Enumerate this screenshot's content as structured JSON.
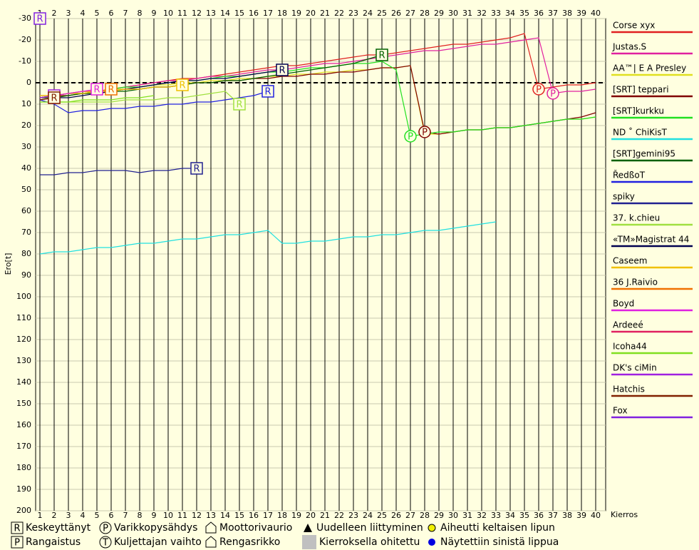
{
  "chart_data": {
    "type": "line",
    "y_label": "Ero[t]",
    "x_label": "Kierros",
    "xlim": [
      0.7,
      40.7
    ],
    "ylim": [
      -30,
      200
    ],
    "y_inverted": true,
    "grid": true,
    "zero_line": true,
    "x": [
      1,
      2,
      3,
      4,
      5,
      6,
      7,
      8,
      9,
      10,
      11,
      12,
      13,
      14,
      15,
      16,
      17,
      18,
      19,
      20,
      21,
      22,
      23,
      24,
      25,
      26,
      27,
      28,
      29,
      30,
      31,
      32,
      33,
      34,
      35,
      36,
      37,
      38,
      39,
      40
    ],
    "xticks": [
      1,
      2,
      3,
      4,
      5,
      6,
      7,
      8,
      9,
      10,
      11,
      12,
      13,
      14,
      15,
      16,
      17,
      18,
      19,
      20,
      21,
      22,
      23,
      24,
      25,
      26,
      27,
      28,
      29,
      30,
      31,
      32,
      33,
      34,
      35,
      36,
      37,
      38,
      39,
      40
    ],
    "yticks": [
      -30,
      -20,
      -10,
      0,
      10,
      20,
      30,
      40,
      50,
      60,
      70,
      80,
      90,
      100,
      110,
      120,
      130,
      140,
      150,
      160,
      170,
      180,
      190,
      200
    ],
    "series": [
      {
        "name": "Corse xyx",
        "color": "#e02020",
        "values": [
          7,
          6,
          5,
          5,
          4,
          3,
          2,
          1,
          0,
          -1,
          -2,
          -2,
          -3,
          -4,
          -5,
          -6,
          -7,
          -8,
          -8,
          -9,
          -10,
          -11,
          -12,
          -13,
          -13,
          -14,
          -15,
          -16,
          -17,
          -18,
          -18,
          -19,
          -20,
          -21,
          -23,
          3,
          2,
          1,
          1,
          0
        ],
        "pits": [
          {
            "lap": 36,
            "label": "P"
          }
        ]
      },
      {
        "name": "Justas.S",
        "color": "#e020a0",
        "values": [
          6,
          6,
          5,
          4,
          4,
          3,
          2,
          1,
          0,
          -1,
          -1,
          -2,
          -3,
          -3,
          -4,
          -5,
          -6,
          -6,
          -7,
          -8,
          -9,
          -9,
          -10,
          -11,
          -12,
          -13,
          -14,
          -15,
          -15,
          -16,
          -17,
          -18,
          -18,
          -19,
          -20,
          -21,
          5,
          4,
          4,
          3
        ],
        "pits": [
          {
            "lap": 37,
            "label": "P"
          }
        ]
      },
      {
        "name": "AA™| E A Presley",
        "color": "#e0e020",
        "values": [
          6,
          6,
          5,
          4,
          4,
          3,
          3,
          2,
          1,
          1,
          0,
          0,
          -1,
          -1,
          -2,
          -2,
          -3,
          -3,
          -4,
          -4,
          -5,
          -5,
          -6,
          -6,
          -7,
          -7,
          -8,
          24,
          24,
          23,
          22,
          22,
          21,
          21,
          20,
          19,
          18,
          17,
          17,
          16
        ]
      },
      {
        "name": "[SRT] teppari",
        "color": "#800000",
        "values": [
          7,
          6,
          6,
          5,
          5,
          4,
          3,
          3,
          2,
          2,
          1,
          0,
          0,
          -1,
          -1,
          -2,
          -2,
          -3,
          -3,
          -4,
          -4,
          -5,
          -5,
          -6,
          -7,
          -7,
          -8,
          23,
          24,
          23,
          22,
          22,
          21,
          21,
          20,
          19,
          18,
          17,
          16,
          14
        ],
        "pits": [
          {
            "lap": 28,
            "label": "P"
          }
        ]
      },
      {
        "name": "[SRT]kurkku",
        "color": "#20e020",
        "values": [
          7,
          6,
          5,
          5,
          4,
          3,
          2,
          2,
          1,
          0,
          -1,
          -1,
          -2,
          -3,
          -3,
          -4,
          -5,
          -5,
          -6,
          -7,
          -7,
          -8,
          -9,
          -9,
          -10,
          -6,
          25,
          24,
          23,
          23,
          22,
          22,
          21,
          21,
          20,
          19,
          18,
          17,
          17,
          16
        ],
        "pits": [
          {
            "lap": 27,
            "label": "P"
          }
        ]
      },
      {
        "name": "ND ˚ ChiKisT",
        "color": "#20e0e0",
        "values": [
          80,
          79,
          79,
          78,
          77,
          77,
          76,
          75,
          75,
          74,
          73,
          73,
          72,
          71,
          71,
          70,
          69,
          75,
          75,
          74,
          74,
          73,
          72,
          72,
          71,
          71,
          70,
          69,
          69,
          68,
          67,
          66,
          65,
          null,
          null,
          null,
          null,
          null,
          null,
          null
        ]
      },
      {
        "name": "[SRT]gemini95",
        "color": "#006000",
        "values": [
          7,
          7,
          6,
          5,
          5,
          4,
          4,
          3,
          2,
          2,
          1,
          0,
          0,
          -1,
          -1,
          -2,
          -3,
          -4,
          -5,
          -6,
          -7,
          -8,
          -9,
          -11,
          -13,
          null,
          null,
          null,
          null,
          null,
          null,
          null,
          null,
          null,
          null,
          null,
          null,
          null,
          null,
          null
        ],
        "end": "R"
      },
      {
        "name": "ŘedßoT",
        "color": "#2020e0",
        "values": [
          8,
          10,
          14,
          13,
          13,
          12,
          12,
          11,
          11,
          10,
          10,
          9,
          9,
          8,
          7,
          6,
          4,
          null,
          null,
          null,
          null,
          null,
          null,
          null,
          null,
          null,
          null,
          null,
          null,
          null,
          null,
          null,
          null,
          null,
          null,
          null,
          null,
          null,
          null,
          null
        ],
        "end": "R"
      },
      {
        "name": "spiky",
        "color": "#202090",
        "values": [
          43,
          43,
          42,
          42,
          41,
          41,
          41,
          42,
          41,
          41,
          40,
          40,
          null,
          null,
          null,
          null,
          null,
          null,
          null,
          null,
          null,
          null,
          null,
          null,
          null,
          null,
          null,
          null,
          null,
          null,
          null,
          null,
          null,
          null,
          null,
          null,
          null,
          null,
          null,
          null
        ],
        "end": "R"
      },
      {
        "name": "37. k.chieu",
        "color": "#a0e040",
        "values": [
          9,
          9,
          9,
          9,
          9,
          9,
          8,
          8,
          8,
          7,
          7,
          6,
          5,
          4,
          10,
          null,
          null,
          null,
          null,
          null,
          null,
          null,
          null,
          null,
          null,
          null,
          null,
          null,
          null,
          null,
          null,
          null,
          null,
          null,
          null,
          null,
          null,
          null,
          null,
          null
        ],
        "end": "R"
      },
      {
        "name": "«TM»Magistrat 44",
        "color": "#000050",
        "values": [
          8,
          7,
          7,
          6,
          5,
          4,
          3,
          2,
          1,
          0,
          -1,
          -1,
          -2,
          -2,
          -3,
          -4,
          -5,
          -6,
          null,
          null,
          null,
          null,
          null,
          null,
          null,
          null,
          null,
          null,
          null,
          null,
          null,
          null,
          null,
          null,
          null,
          null,
          null,
          null,
          null,
          null
        ],
        "end": "R"
      },
      {
        "name": "Caseem",
        "color": "#f0c000",
        "values": [
          6,
          6,
          5,
          5,
          4,
          4,
          3,
          3,
          2,
          2,
          1,
          null,
          null,
          null,
          null,
          null,
          null,
          null,
          null,
          null,
          null,
          null,
          null,
          null,
          null,
          null,
          null,
          null,
          null,
          null,
          null,
          null,
          null,
          null,
          null,
          null,
          null,
          null,
          null,
          null
        ],
        "end": "R"
      },
      {
        "name": "36 J.Raivio",
        "color": "#f07000",
        "values": [
          7,
          6,
          5,
          4,
          4,
          3,
          null,
          null,
          null,
          null,
          null,
          null,
          null,
          null,
          null,
          null,
          null,
          null,
          null,
          null,
          null,
          null,
          null,
          null,
          null,
          null,
          null,
          null,
          null,
          null,
          null,
          null,
          null,
          null,
          null,
          null,
          null,
          null,
          null,
          null
        ],
        "end": "R"
      },
      {
        "name": "Boyd",
        "color": "#e020e0",
        "values": [
          7,
          6,
          5,
          4,
          3,
          null,
          null,
          null,
          null,
          null,
          null,
          null,
          null,
          null,
          null,
          null,
          null,
          null,
          null,
          null,
          null,
          null,
          null,
          null,
          null,
          null,
          null,
          null,
          null,
          null,
          null,
          null,
          null,
          null,
          null,
          null,
          null,
          null,
          null,
          null
        ],
        "end": "R"
      },
      {
        "name": "Ardeeé",
        "color": "#e02060",
        "values": [
          8,
          7,
          null,
          null,
          null,
          null,
          null,
          null,
          null,
          null,
          null,
          null,
          null,
          null,
          null,
          null,
          null,
          null,
          null,
          null,
          null,
          null,
          null,
          null,
          null,
          null,
          null,
          null,
          null,
          null,
          null,
          null,
          null,
          null,
          null,
          null,
          null,
          null,
          null,
          null
        ],
        "end": "R"
      },
      {
        "name": "Icoha44",
        "color": "#80e020",
        "values": [
          9,
          9,
          9,
          8,
          8,
          8,
          7,
          7,
          6,
          null,
          null,
          null,
          null,
          null,
          null,
          null,
          null,
          null,
          null,
          null,
          null,
          null,
          null,
          null,
          null,
          null,
          null,
          null,
          null,
          null,
          null,
          null,
          null,
          null,
          null,
          null,
          null,
          null,
          null,
          null
        ]
      },
      {
        "name": "DK's ciMin",
        "color": "#a020e0",
        "values": [
          7,
          6,
          null,
          null,
          null,
          null,
          null,
          null,
          null,
          null,
          null,
          null,
          null,
          null,
          null,
          null,
          null,
          null,
          null,
          null,
          null,
          null,
          null,
          null,
          null,
          null,
          null,
          null,
          null,
          null,
          null,
          null,
          null,
          null,
          null,
          null,
          null,
          null,
          null,
          null
        ],
        "end": "R"
      },
      {
        "name": "Hatchis",
        "color": "#802000",
        "values": [
          8,
          7,
          null,
          null,
          null,
          null,
          null,
          null,
          null,
          null,
          null,
          null,
          null,
          null,
          null,
          null,
          null,
          null,
          null,
          null,
          null,
          null,
          null,
          null,
          null,
          null,
          null,
          null,
          null,
          null,
          null,
          null,
          null,
          null,
          null,
          null,
          null,
          null,
          null,
          null
        ],
        "end": "R"
      },
      {
        "name": "Fox",
        "color": "#8020e0",
        "values": [
          -30,
          null,
          null,
          null,
          null,
          null,
          null,
          null,
          null,
          null,
          null,
          null,
          null,
          null,
          null,
          null,
          null,
          null,
          null,
          null,
          null,
          null,
          null,
          null,
          null,
          null,
          null,
          null,
          null,
          null,
          null,
          null,
          null,
          null,
          null,
          null,
          null,
          null,
          null,
          null
        ],
        "end": "R"
      }
    ],
    "key": [
      {
        "symbol": "R",
        "label": "Keskeyttänyt"
      },
      {
        "symbol": "P",
        "label": "Varikkopysähdys"
      },
      {
        "label": "Moottorivaurio"
      },
      {
        "label": "Uudelleen liittyminen"
      },
      {
        "label": "Aiheutti keltaisen lipun"
      },
      {
        "symbol": "P",
        "label": "Rangaistus"
      },
      {
        "symbol": "T",
        "label": "Kuljettajan vaihto"
      },
      {
        "label": "Rengasrikko"
      },
      {
        "label": "Kierroksella ohitettu"
      },
      {
        "label": "Näytettiin sinistä lippua"
      }
    ]
  }
}
